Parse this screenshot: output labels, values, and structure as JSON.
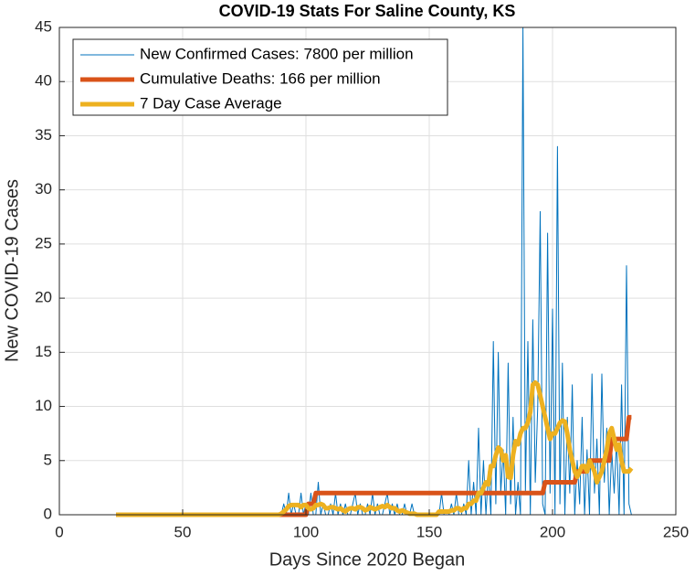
{
  "chart_data": {
    "type": "line",
    "title": "COVID-19 Stats For Saline County, KS",
    "x_label": "Days Since 2020 Began",
    "y_label": "New COVID-19 Cases",
    "xlim": [
      0,
      250
    ],
    "xticks": [
      0,
      50,
      100,
      150,
      200,
      250
    ],
    "ylim": [
      0,
      45
    ],
    "yticks": [
      0,
      5,
      10,
      15,
      20,
      25,
      30,
      35,
      40,
      45
    ],
    "grid": true,
    "legend": "upper-left",
    "x": [
      23,
      24,
      25,
      26,
      27,
      28,
      29,
      30,
      31,
      32,
      33,
      34,
      35,
      36,
      37,
      38,
      39,
      40,
      41,
      42,
      43,
      44,
      45,
      46,
      47,
      48,
      49,
      50,
      51,
      52,
      53,
      54,
      55,
      56,
      57,
      58,
      59,
      60,
      61,
      62,
      63,
      64,
      65,
      66,
      67,
      68,
      69,
      70,
      71,
      72,
      73,
      74,
      75,
      76,
      77,
      78,
      79,
      80,
      81,
      82,
      83,
      84,
      85,
      86,
      87,
      88,
      89,
      90,
      91,
      92,
      93,
      94,
      95,
      96,
      97,
      98,
      99,
      100,
      101,
      102,
      103,
      104,
      105,
      106,
      107,
      108,
      109,
      110,
      111,
      112,
      113,
      114,
      115,
      116,
      117,
      118,
      119,
      120,
      121,
      122,
      123,
      124,
      125,
      126,
      127,
      128,
      129,
      130,
      131,
      132,
      133,
      134,
      135,
      136,
      137,
      138,
      139,
      140,
      141,
      142,
      143,
      144,
      145,
      146,
      147,
      148,
      149,
      150,
      151,
      152,
      153,
      154,
      155,
      156,
      157,
      158,
      159,
      160,
      161,
      162,
      163,
      164,
      165,
      166,
      167,
      168,
      169,
      170,
      171,
      172,
      173,
      174,
      175,
      176,
      177,
      178,
      179,
      180,
      181,
      182,
      183,
      184,
      185,
      186,
      187,
      188,
      189,
      190,
      191,
      192,
      193,
      194,
      195,
      196,
      197,
      198,
      199,
      200,
      201,
      202,
      203,
      204,
      205,
      206,
      207,
      208,
      209,
      210,
      211,
      212,
      213,
      214,
      215,
      216,
      217,
      218,
      219,
      220,
      221,
      222,
      223,
      224,
      225,
      226,
      227,
      228,
      229,
      230,
      231,
      232
    ],
    "series": [
      {
        "name": "New Confirmed Cases: 7800 per million",
        "color": "#0072BD",
        "linewidth": 1,
        "values": [
          0,
          0,
          0,
          0,
          0,
          0,
          0,
          0,
          0,
          0,
          0,
          0,
          0,
          0,
          0,
          0,
          0,
          0,
          0,
          0,
          0,
          0,
          0,
          0,
          0,
          0,
          0,
          0,
          0,
          0,
          0,
          0,
          0,
          0,
          0,
          0,
          0,
          0,
          0,
          0,
          0,
          0,
          0,
          0,
          0,
          0,
          0,
          0,
          0,
          0,
          0,
          0,
          0,
          0,
          0,
          0,
          0,
          0,
          0,
          0,
          0,
          0,
          0,
          0,
          0,
          0,
          0,
          0,
          1,
          0,
          2,
          0,
          1,
          0,
          0,
          2,
          0,
          1,
          0,
          2,
          0,
          0,
          3,
          0,
          1,
          0,
          0,
          1,
          0,
          2,
          0,
          1,
          0,
          1,
          0,
          0,
          1,
          2,
          0,
          1,
          0,
          0,
          1,
          0,
          2,
          0,
          1,
          0,
          0,
          1,
          2,
          0,
          1,
          0,
          1,
          0,
          0,
          1,
          0,
          0,
          1,
          0,
          0,
          0,
          0,
          0,
          0,
          0,
          0,
          0,
          0,
          0,
          2,
          0,
          0,
          0,
          1,
          0,
          2,
          0,
          0,
          1,
          0,
          5,
          0,
          3,
          0,
          8,
          0,
          5,
          0,
          4,
          0,
          16,
          1,
          15,
          2,
          6,
          0,
          14,
          1,
          9,
          0,
          3,
          0,
          45,
          2,
          16,
          0,
          18,
          3,
          10,
          28,
          1,
          0,
          26,
          2,
          19,
          0,
          34,
          1,
          14,
          0,
          9,
          2,
          12,
          0,
          5,
          1,
          9,
          0,
          6,
          0,
          13,
          2,
          7,
          0,
          13,
          3,
          8,
          0,
          6,
          2,
          7,
          0,
          12,
          0,
          23,
          1,
          0
        ]
      },
      {
        "name": "Cumulative Deaths: 166 per million",
        "color": "#D95319",
        "linewidth": 5,
        "values": [
          0,
          0,
          0,
          0,
          0,
          0,
          0,
          0,
          0,
          0,
          0,
          0,
          0,
          0,
          0,
          0,
          0,
          0,
          0,
          0,
          0,
          0,
          0,
          0,
          0,
          0,
          0,
          0,
          0,
          0,
          0,
          0,
          0,
          0,
          0,
          0,
          0,
          0,
          0,
          0,
          0,
          0,
          0,
          0,
          0,
          0,
          0,
          0,
          0,
          0,
          0,
          0,
          0,
          0,
          0,
          0,
          0,
          0,
          0,
          0,
          0,
          0,
          0,
          0,
          0,
          0,
          0,
          0,
          0,
          0,
          0,
          0,
          0,
          0,
          0,
          0,
          0,
          0,
          1,
          1,
          1,
          2,
          2,
          2,
          2,
          2,
          2,
          2,
          2,
          2,
          2,
          2,
          2,
          2,
          2,
          2,
          2,
          2,
          2,
          2,
          2,
          2,
          2,
          2,
          2,
          2,
          2,
          2,
          2,
          2,
          2,
          2,
          2,
          2,
          2,
          2,
          2,
          2,
          2,
          2,
          2,
          2,
          2,
          2,
          2,
          2,
          2,
          2,
          2,
          2,
          2,
          2,
          2,
          2,
          2,
          2,
          2,
          2,
          2,
          2,
          2,
          2,
          2,
          2,
          2,
          2,
          2,
          2,
          2,
          2,
          2,
          2,
          2,
          2,
          2,
          2,
          2,
          2,
          2,
          2,
          2,
          2,
          2,
          2,
          2,
          2,
          2,
          2,
          2,
          2,
          2,
          2,
          2,
          2,
          3,
          3,
          3,
          3,
          3,
          3,
          3,
          3,
          3,
          3,
          3,
          3,
          3,
          4,
          4,
          4,
          4,
          4,
          5,
          5,
          5,
          5,
          5,
          5,
          5,
          5,
          5,
          7,
          7,
          7,
          7,
          7,
          7,
          7,
          9,
          9
        ]
      },
      {
        "name": "7 Day Case Average",
        "color": "#EDB120",
        "linewidth": 5,
        "values": [
          0,
          0,
          0,
          0,
          0,
          0,
          0,
          0,
          0,
          0,
          0,
          0,
          0,
          0,
          0,
          0,
          0,
          0,
          0,
          0,
          0,
          0,
          0,
          0,
          0,
          0,
          0,
          0,
          0,
          0,
          0,
          0,
          0,
          0,
          0,
          0,
          0,
          0,
          0,
          0,
          0,
          0,
          0,
          0,
          0,
          0,
          0,
          0,
          0,
          0,
          0,
          0,
          0,
          0,
          0,
          0,
          0,
          0,
          0,
          0,
          0,
          0,
          0,
          0,
          0,
          0,
          0,
          0.1,
          0.3,
          0.5,
          0.8,
          0.9,
          0.9,
          0.9,
          0.9,
          0.7,
          0.9,
          0.9,
          0.6,
          0.5,
          0.6,
          0.9,
          0.9,
          1,
          0.9,
          0.6,
          0.6,
          0.7,
          0.7,
          0.6,
          0.5,
          0.6,
          0.4,
          0.3,
          0.5,
          0.6,
          0.6,
          0.5,
          0.7,
          0.7,
          0.6,
          0.4,
          0.5,
          0.7,
          0.6,
          0.5,
          0.6,
          0.7,
          0.8,
          0.7,
          0.9,
          0.7,
          0.6,
          0.6,
          0.4,
          0.3,
          0.4,
          0.3,
          0.2,
          0.1,
          0.1,
          0.1,
          0,
          0,
          0,
          0,
          0,
          0,
          0,
          0,
          0,
          0.3,
          0.3,
          0.3,
          0.3,
          0.3,
          0.4,
          0.4,
          0.6,
          0.6,
          0.4,
          0.6,
          0.6,
          1,
          1,
          1.3,
          1.3,
          2,
          2,
          2.5,
          3,
          2.8,
          4.5,
          4.5,
          5.5,
          6.2,
          6,
          5,
          5.5,
          3.5,
          3.4,
          5.5,
          6.8,
          6.5,
          7.5,
          8,
          8,
          8.5,
          9.5,
          12,
          12.2,
          12,
          11,
          10,
          9,
          8,
          7,
          7.5,
          7.5,
          8,
          8.5,
          8.7,
          8.6,
          7.5,
          6,
          5,
          4,
          3.5,
          4,
          4.5,
          4.5,
          4,
          5,
          4.5,
          4,
          3,
          3.5,
          4,
          5,
          6,
          7.5,
          8,
          7,
          6,
          6.5,
          5,
          4,
          4,
          4,
          4.3
        ]
      }
    ]
  }
}
